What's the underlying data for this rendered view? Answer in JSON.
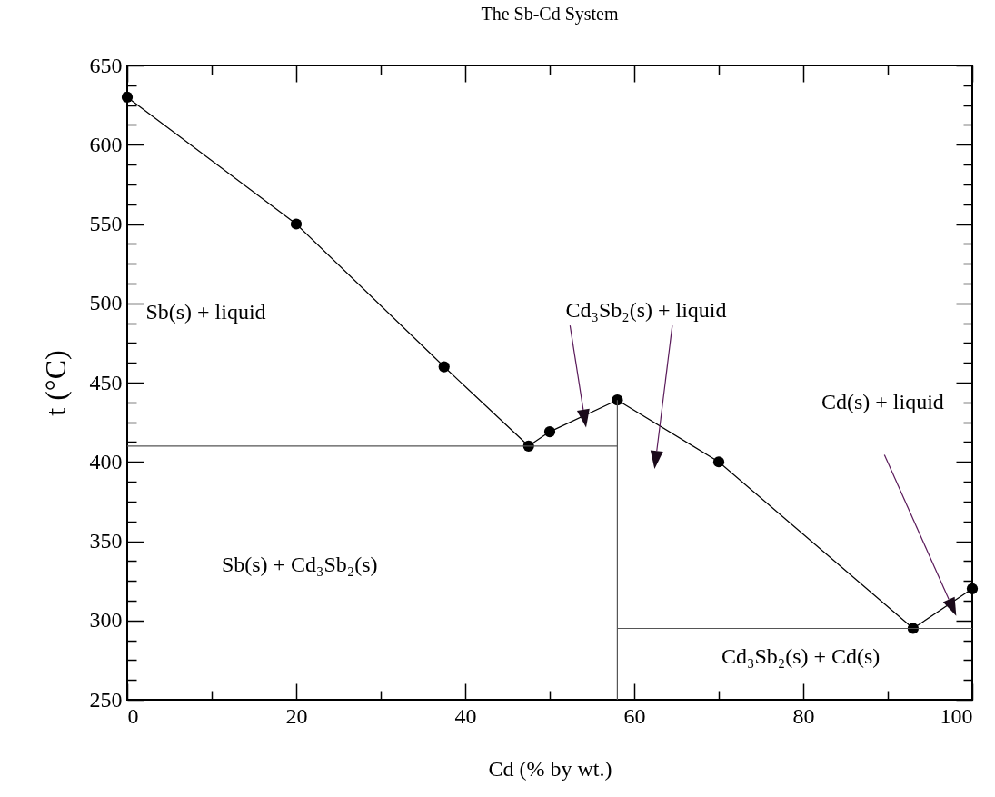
{
  "chart_data": {
    "type": "line",
    "title": "The Sb-Cd System",
    "xlabel": "Cd (% by wt.)",
    "ylabel": "t (°C)",
    "marker": "circle",
    "line_style": "solid",
    "grid": false,
    "xlim": [
      0,
      100
    ],
    "ylim": [
      250,
      650
    ],
    "xticks": [
      0,
      {
        "value": 10,
        "label": null
      },
      20,
      {
        "value": 30,
        "label": null
      },
      40,
      {
        "value": 50,
        "label": null
      },
      60,
      {
        "value": 70,
        "label": null
      },
      80,
      {
        "value": 90,
        "label": null
      },
      100
    ],
    "yticks": [
      250,
      {
        "value": 262.5,
        "label": null
      },
      {
        "value": 275,
        "label": null
      },
      {
        "value": 287.5,
        "label": null
      },
      300,
      {
        "value": 312.5,
        "label": null
      },
      {
        "value": 325,
        "label": null
      },
      {
        "value": 337.5,
        "label": null
      },
      350,
      {
        "value": 362.5,
        "label": null
      },
      {
        "value": 375,
        "label": null
      },
      {
        "value": 387.5,
        "label": null
      },
      400,
      {
        "value": 412.5,
        "label": null
      },
      {
        "value": 425,
        "label": null
      },
      {
        "value": 437.5,
        "label": null
      },
      450,
      {
        "value": 462.5,
        "label": null
      },
      {
        "value": 475,
        "label": null
      },
      {
        "value": 487.5,
        "label": null
      },
      500,
      {
        "value": 512.5,
        "label": null
      },
      {
        "value": 525,
        "label": null
      },
      {
        "value": 537.5,
        "label": null
      },
      550,
      {
        "value": 562.5,
        "label": null
      },
      {
        "value": 575,
        "label": null
      },
      {
        "value": 587.5,
        "label": null
      },
      600,
      {
        "value": 612.5,
        "label": null
      },
      {
        "value": 625,
        "label": null
      },
      {
        "value": 637.5,
        "label": null
      },
      650
    ],
    "series": [
      {
        "color": "#000000",
        "x": [
          0,
          20,
          37.5,
          47.5,
          50,
          58,
          70,
          93,
          100
        ],
        "values": [
          630,
          550,
          460,
          410,
          419,
          439,
          400,
          295,
          320
        ]
      },
      {
        "color": "#555555",
        "marker": "none",
        "x": [
          0,
          58
        ],
        "values": [
          410,
          410
        ]
      },
      {
        "color": "#555555",
        "marker": "none",
        "x": [
          58,
          58
        ],
        "values": [
          250,
          439
        ]
      },
      {
        "color": "#555555",
        "marker": "none",
        "x": [
          58,
          100
        ],
        "values": [
          295,
          295
        ]
      }
    ],
    "annotations": [
      "Sb(s) + liquid",
      "Cd₃Sb₂(s) + liquid",
      "Cd(s) + liquid",
      "Sb(s) + Cd₃Sb₂(s)",
      "Cd₃Sb₂(s) + Cd(s)"
    ]
  }
}
